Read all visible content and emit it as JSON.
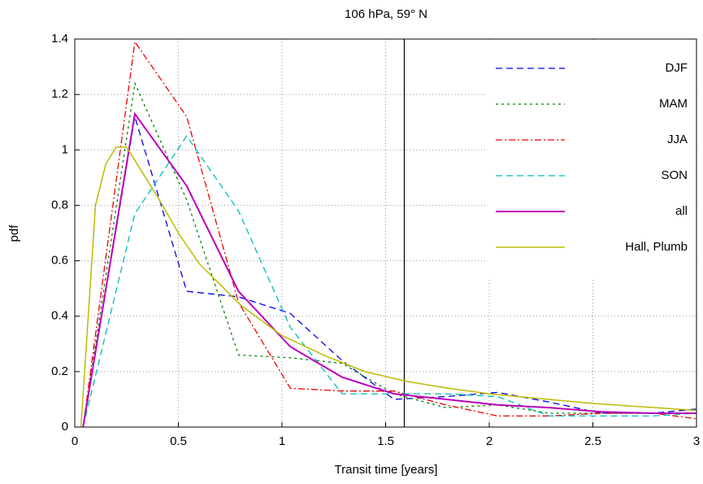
{
  "chart_data": {
    "type": "line",
    "title": "106 hPa, 59° N",
    "x_label": "Transit time [years]",
    "y_label": "pdf",
    "xlim": [
      0,
      3
    ],
    "ylim": [
      0,
      1.4
    ],
    "xticks": [
      0,
      0.5,
      1,
      1.5,
      2,
      2.5,
      3
    ],
    "yticks": [
      0,
      0.2,
      0.4,
      0.6,
      0.8,
      1,
      1.2,
      1.4
    ],
    "grid": true,
    "legend": "upper right",
    "vline": 1.59,
    "vline_color": "#000000",
    "x": [
      0.04,
      0.29,
      0.54,
      0.79,
      1.04,
      1.29,
      1.54,
      1.79,
      2.04,
      2.29,
      2.54,
      2.79,
      3.0
    ],
    "series": [
      {
        "name": "DJF",
        "color": "#0000ee",
        "dash": "8,5",
        "values": [
          0,
          1.12,
          0.49,
          0.47,
          0.41,
          0.24,
          0.1,
          0.11,
          0.125,
          0.09,
          0.05,
          0.05,
          0.065
        ]
      },
      {
        "name": "MAM",
        "color": "#008000",
        "dash": "3,4",
        "values": [
          0,
          1.24,
          0.82,
          0.26,
          0.25,
          0.23,
          0.12,
          0.07,
          0.08,
          0.05,
          0.05,
          0.05,
          0.05
        ]
      },
      {
        "name": "JJA",
        "color": "#ee0000",
        "dash": "8,3,2,3",
        "values": [
          0,
          1.39,
          1.12,
          0.45,
          0.14,
          0.13,
          0.13,
          0.08,
          0.04,
          0.04,
          0.05,
          0.05,
          0.03
        ]
      },
      {
        "name": "SON",
        "color": "#00bbbb",
        "dash": "8,5",
        "values": [
          0,
          0.77,
          1.05,
          0.78,
          0.36,
          0.12,
          0.12,
          0.12,
          0.11,
          0.04,
          0.04,
          0.04,
          0.05
        ]
      },
      {
        "name": "all",
        "color": "#bb00bb",
        "width": 2,
        "values": [
          0,
          1.13,
          0.87,
          0.49,
          0.29,
          0.18,
          0.12,
          0.1,
          0.08,
          0.07,
          0.055,
          0.05,
          0.05
        ]
      },
      {
        "name": "Hall, Plumb",
        "color": "#bbbb00",
        "width": 1.5,
        "x": [
          0.03,
          0.1,
          0.15,
          0.2,
          0.25,
          0.3,
          0.4,
          0.5,
          0.6,
          0.8,
          1.0,
          1.2,
          1.4,
          1.6,
          1.8,
          2.0,
          2.5,
          3.0
        ],
        "values": [
          0,
          0.8,
          0.95,
          1.01,
          1.01,
          0.95,
          0.83,
          0.7,
          0.59,
          0.44,
          0.33,
          0.26,
          0.2,
          0.165,
          0.14,
          0.12,
          0.085,
          0.06
        ]
      }
    ]
  }
}
